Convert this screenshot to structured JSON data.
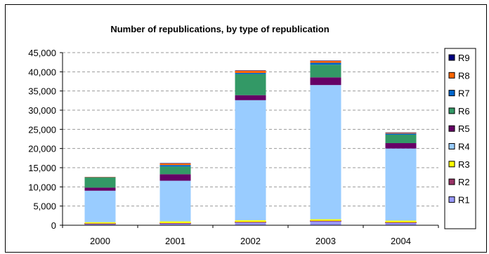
{
  "chart_data": {
    "type": "bar",
    "stacked": true,
    "title": "Number of republications, by type of republication",
    "xlabel": "",
    "ylabel": "",
    "categories": [
      "2000",
      "2001",
      "2002",
      "2003",
      "2004"
    ],
    "ylim": [
      0,
      45000
    ],
    "yticks": [
      "0",
      "5,000",
      "10,000",
      "15,000",
      "20,000",
      "25,000",
      "30,000",
      "35,000",
      "40,000",
      "45,000"
    ],
    "ytick_values": [
      0,
      5000,
      10000,
      15000,
      20000,
      25000,
      30000,
      35000,
      40000,
      45000
    ],
    "grid": "horizontal dashed",
    "legend_position": "right",
    "series": [
      {
        "name": "R1",
        "color": "#9999ff",
        "values": [
          400,
          500,
          800,
          1100,
          700
        ]
      },
      {
        "name": "R2",
        "color": "#993366",
        "values": [
          50,
          50,
          50,
          50,
          50
        ]
      },
      {
        "name": "R3",
        "color": "#ffff00",
        "values": [
          350,
          450,
          450,
          400,
          450
        ]
      },
      {
        "name": "R4",
        "color": "#99ccff",
        "values": [
          8200,
          10600,
          31300,
          35000,
          18800
        ]
      },
      {
        "name": "R5",
        "color": "#660066",
        "values": [
          800,
          1700,
          1300,
          2000,
          1400
        ]
      },
      {
        "name": "R6",
        "color": "#339966",
        "values": [
          2700,
          2000,
          5500,
          3300,
          2200
        ]
      },
      {
        "name": "R7",
        "color": "#0066cc",
        "values": [
          50,
          400,
          300,
          500,
          300
        ]
      },
      {
        "name": "R8",
        "color": "#ff6600",
        "values": [
          50,
          400,
          600,
          500,
          200
        ]
      },
      {
        "name": "R9",
        "color": "#000080",
        "values": [
          0,
          100,
          100,
          100,
          100
        ]
      }
    ],
    "legend_order": [
      "R9",
      "R8",
      "R7",
      "R6",
      "R5",
      "R4",
      "R3",
      "R2",
      "R1"
    ]
  }
}
